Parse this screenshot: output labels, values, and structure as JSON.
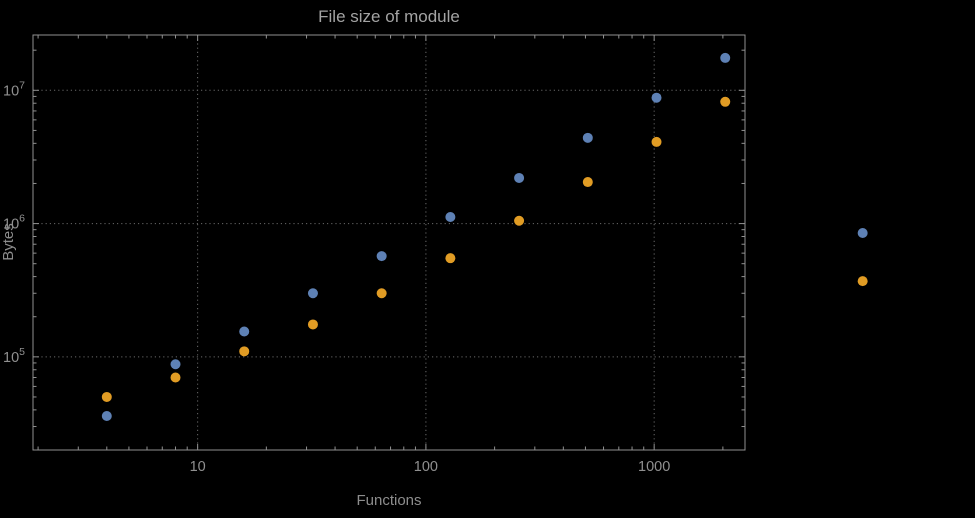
{
  "chart_data": {
    "type": "scatter",
    "title": "File size of module",
    "xlabel": "Functions",
    "ylabel": "Bytes",
    "x_scale": "log",
    "y_scale": "log",
    "xlim": [
      1.9,
      2500
    ],
    "ylim": [
      20000,
      26000000
    ],
    "x_ticks": [
      10,
      100,
      1000
    ],
    "x_tick_labels": [
      "10",
      "100",
      "1000"
    ],
    "y_ticks": [
      100000,
      1000000,
      10000000
    ],
    "y_tick_labels": [
      "10^5",
      "10^6",
      "10^7"
    ],
    "grid": true,
    "legend": "none",
    "marker": {
      "shape": "circle",
      "radius": 5
    },
    "series": [
      {
        "name": "blue",
        "color": "#5e81b5",
        "points": [
          [
            4,
            36000
          ],
          [
            8,
            88000
          ],
          [
            16,
            155000
          ],
          [
            32,
            300000
          ],
          [
            64,
            570000
          ],
          [
            128,
            1120000
          ],
          [
            256,
            2200000
          ],
          [
            512,
            4400000
          ],
          [
            1024,
            8800000
          ],
          [
            2048,
            17500000
          ],
          [
            8192,
            850000
          ]
        ]
      },
      {
        "name": "orange",
        "color": "#e19c24",
        "points": [
          [
            4,
            50000
          ],
          [
            8,
            70000
          ],
          [
            16,
            110000
          ],
          [
            32,
            175000
          ],
          [
            64,
            300000
          ],
          [
            128,
            550000
          ],
          [
            256,
            1050000
          ],
          [
            512,
            2050000
          ],
          [
            1024,
            4100000
          ],
          [
            2048,
            8200000
          ],
          [
            8192,
            370000
          ]
        ]
      }
    ],
    "colors": {
      "background": "#000000",
      "frame": "#919191",
      "grid": "#696969",
      "tick_text": "#909090",
      "title_text": "#a3a3a3",
      "axis_label_text": "#8d8d8d"
    }
  }
}
